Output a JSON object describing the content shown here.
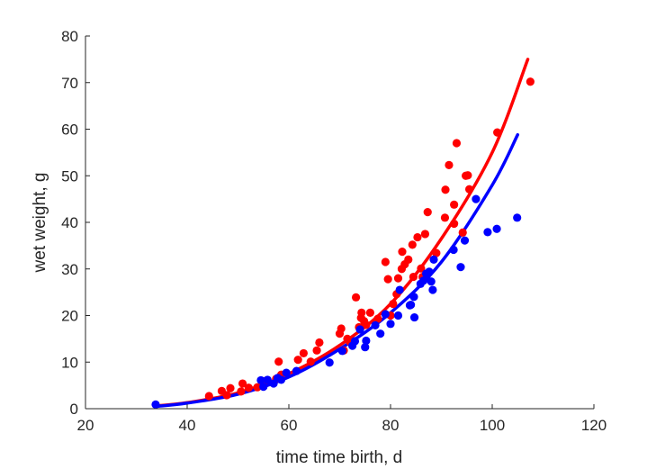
{
  "chart_data": {
    "type": "scatter",
    "title": "",
    "xlabel": "time time birth, d",
    "ylabel": "wet weight, g",
    "xlim": [
      20,
      120
    ],
    "ylim": [
      0,
      80
    ],
    "xticks": [
      20,
      40,
      60,
      80,
      100,
      120
    ],
    "yticks": [
      0,
      10,
      20,
      30,
      40,
      50,
      60,
      70,
      80
    ],
    "grid": false,
    "legend": "none",
    "series": [
      {
        "color": "#ff0000",
        "points": [
          [
            44.3,
            2.7
          ],
          [
            46.8,
            3.8
          ],
          [
            47.8,
            2.9
          ],
          [
            48.5,
            4.4
          ],
          [
            50.6,
            3.7
          ],
          [
            50.9,
            5.4
          ],
          [
            52.1,
            4.5
          ],
          [
            53.8,
            4.6
          ],
          [
            55.0,
            5.9
          ],
          [
            57.5,
            6.4
          ],
          [
            58.0,
            10.1
          ],
          [
            58.5,
            7.3
          ],
          [
            61.8,
            10.5
          ],
          [
            62.9,
            11.9
          ],
          [
            64.3,
            10.1
          ],
          [
            65.5,
            12.5
          ],
          [
            66.0,
            14.2
          ],
          [
            70.0,
            16.1
          ],
          [
            70.3,
            17.2
          ],
          [
            70.8,
            12.5
          ],
          [
            71.5,
            15.0
          ],
          [
            72.0,
            14.4
          ],
          [
            73.2,
            23.9
          ],
          [
            73.8,
            17.5
          ],
          [
            74.2,
            19.5
          ],
          [
            74.3,
            20.6
          ],
          [
            74.8,
            18.8
          ],
          [
            75.2,
            18.0
          ],
          [
            76.0,
            20.6
          ],
          [
            77.5,
            19.3
          ],
          [
            79.0,
            31.5
          ],
          [
            79.5,
            27.8
          ],
          [
            80.0,
            20.0
          ],
          [
            80.5,
            22.5
          ],
          [
            81.2,
            24.6
          ],
          [
            81.5,
            28.0
          ],
          [
            82.2,
            30.0
          ],
          [
            82.3,
            33.7
          ],
          [
            82.8,
            31.0
          ],
          [
            83.5,
            32.0
          ],
          [
            84.3,
            35.2
          ],
          [
            84.5,
            28.3
          ],
          [
            85.3,
            36.8
          ],
          [
            86.0,
            30.1
          ],
          [
            86.3,
            28.3
          ],
          [
            86.8,
            37.5
          ],
          [
            87.3,
            42.2
          ],
          [
            89.0,
            33.4
          ],
          [
            90.7,
            41.0
          ],
          [
            90.8,
            47.0
          ],
          [
            91.5,
            52.3
          ],
          [
            92.5,
            39.7
          ],
          [
            92.5,
            43.8
          ],
          [
            93.0,
            57.0
          ],
          [
            94.2,
            37.8
          ],
          [
            94.8,
            50.0
          ],
          [
            95.2,
            50.1
          ],
          [
            95.5,
            47.1
          ],
          [
            101.0,
            59.3
          ],
          [
            107.5,
            70.2
          ]
        ]
      },
      {
        "color": "#0000ff",
        "points": [
          [
            33.8,
            0.9
          ],
          [
            54.5,
            6.1
          ],
          [
            55.0,
            4.7
          ],
          [
            55.8,
            6.2
          ],
          [
            57.0,
            5.4
          ],
          [
            57.8,
            6.6
          ],
          [
            58.5,
            6.2
          ],
          [
            59.5,
            7.7
          ],
          [
            61.5,
            8.1
          ],
          [
            68.0,
            9.9
          ],
          [
            70.5,
            12.4
          ],
          [
            72.5,
            13.5
          ],
          [
            73.0,
            14.5
          ],
          [
            74.0,
            17.0
          ],
          [
            75.0,
            13.2
          ],
          [
            75.2,
            14.6
          ],
          [
            77.0,
            17.9
          ],
          [
            78.0,
            16.1
          ],
          [
            79.0,
            20.3
          ],
          [
            80.0,
            18.2
          ],
          [
            81.5,
            20.0
          ],
          [
            81.8,
            25.5
          ],
          [
            83.8,
            22.2
          ],
          [
            84.0,
            22.3
          ],
          [
            84.6,
            24.0
          ],
          [
            84.7,
            19.6
          ],
          [
            85.9,
            26.8
          ],
          [
            86.5,
            27.5
          ],
          [
            87.0,
            29.0
          ],
          [
            87.6,
            29.4
          ],
          [
            88.0,
            27.3
          ],
          [
            88.3,
            25.5
          ],
          [
            88.5,
            32.0
          ],
          [
            92.4,
            34.1
          ],
          [
            93.8,
            30.4
          ],
          [
            94.6,
            36.1
          ],
          [
            96.8,
            45.0
          ],
          [
            99.1,
            37.9
          ],
          [
            100.9,
            38.6
          ],
          [
            104.9,
            41.0
          ]
        ]
      }
    ],
    "curves": [
      {
        "color": "#ff0000",
        "x": [
          34,
          40,
          50,
          60,
          70,
          80,
          90,
          100,
          107
        ],
        "y": [
          0.6,
          1.3,
          3.4,
          7.5,
          13.6,
          22.5,
          36.5,
          55.0,
          75.0
        ]
      },
      {
        "color": "#0000ff",
        "x": [
          34,
          40,
          50,
          60,
          70,
          80,
          90,
          100,
          105
        ],
        "y": [
          0.5,
          1.2,
          3.1,
          6.8,
          12.8,
          20.6,
          31.5,
          48.0,
          58.8
        ]
      }
    ]
  }
}
